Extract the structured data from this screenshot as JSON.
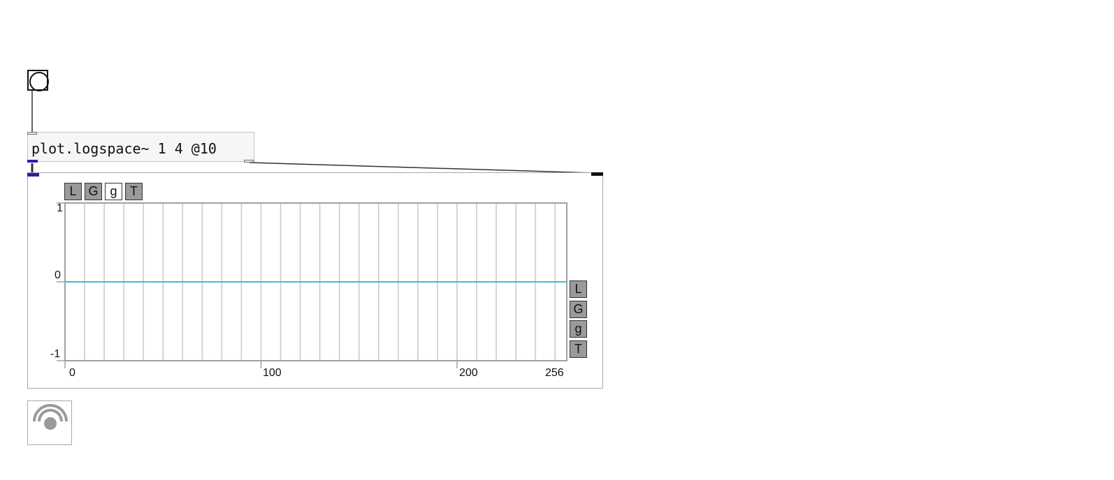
{
  "patch": {
    "object_text": "plot.logspace~ 1 4 @10",
    "bang_icon": "bang-circle-icon",
    "dac_icon": "speaker-icon"
  },
  "plot": {
    "top_buttons": [
      {
        "label": "L",
        "active": false
      },
      {
        "label": "G",
        "active": false
      },
      {
        "label": "g",
        "active": true
      },
      {
        "label": "T",
        "active": false
      }
    ],
    "side_buttons": [
      {
        "label": "L"
      },
      {
        "label": "G"
      },
      {
        "label": "g"
      },
      {
        "label": "T"
      }
    ],
    "colors": {
      "signal": "#3bbfd8",
      "grid": "#c8c8c8",
      "frame": "#a0a0a0",
      "button_fill": "#9a9a9a"
    }
  },
  "chart_data": {
    "type": "line",
    "title": "",
    "xlabel": "",
    "ylabel": "",
    "xlim": [
      0,
      256
    ],
    "ylim": [
      -1,
      1
    ],
    "x_ticks": [
      "0",
      "100",
      "200",
      "256"
    ],
    "y_ticks": [
      "1",
      "0",
      "-1"
    ],
    "grid": true,
    "series": [
      {
        "x": [
          0,
          256
        ],
        "y": [
          0,
          0
        ]
      }
    ]
  }
}
